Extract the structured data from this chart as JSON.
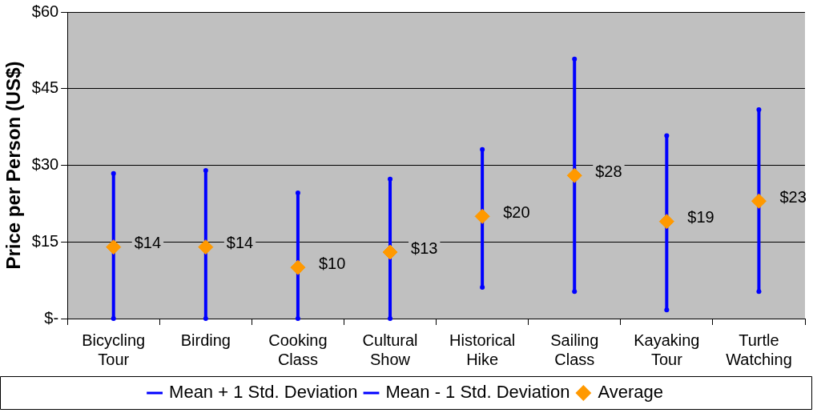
{
  "chart_data": {
    "type": "scatter",
    "ylabel": "Price per Person (US$)",
    "categories": [
      "Bicycling Tour",
      "Birding",
      "Cooking Class",
      "Cultural Show",
      "Historical Hike",
      "Sailing Class",
      "Kayaking Tour",
      "Turtle Watching"
    ],
    "series": [
      {
        "name": "Mean + 1 Std. Deviation",
        "color": "#0000ff",
        "values": [
          28.4,
          29.0,
          24.6,
          27.3,
          33.1,
          50.8,
          35.8,
          40.9
        ]
      },
      {
        "name": "Mean - 1 Std. Deviation",
        "color": "#0000ff",
        "values": [
          0,
          0,
          0,
          0,
          6.1,
          5.3,
          1.7,
          5.3
        ]
      },
      {
        "name": "Average",
        "color": "#ff9900",
        "marker": "diamond",
        "values": [
          14,
          14,
          10,
          13,
          20,
          28,
          19,
          23
        ],
        "value_labels": [
          "$14",
          "$14",
          "$10",
          "$13",
          "$20",
          "$28",
          "$19",
          "$23"
        ]
      }
    ],
    "ylim": [
      0,
      60
    ],
    "yticks": [
      {
        "value": 0,
        "label": "$-"
      },
      {
        "value": 15,
        "label": "$15"
      },
      {
        "value": 30,
        "label": "$30"
      },
      {
        "value": 45,
        "label": "$45"
      },
      {
        "value": 60,
        "label": "$60"
      }
    ],
    "grid": "y",
    "legend": "bottom"
  }
}
